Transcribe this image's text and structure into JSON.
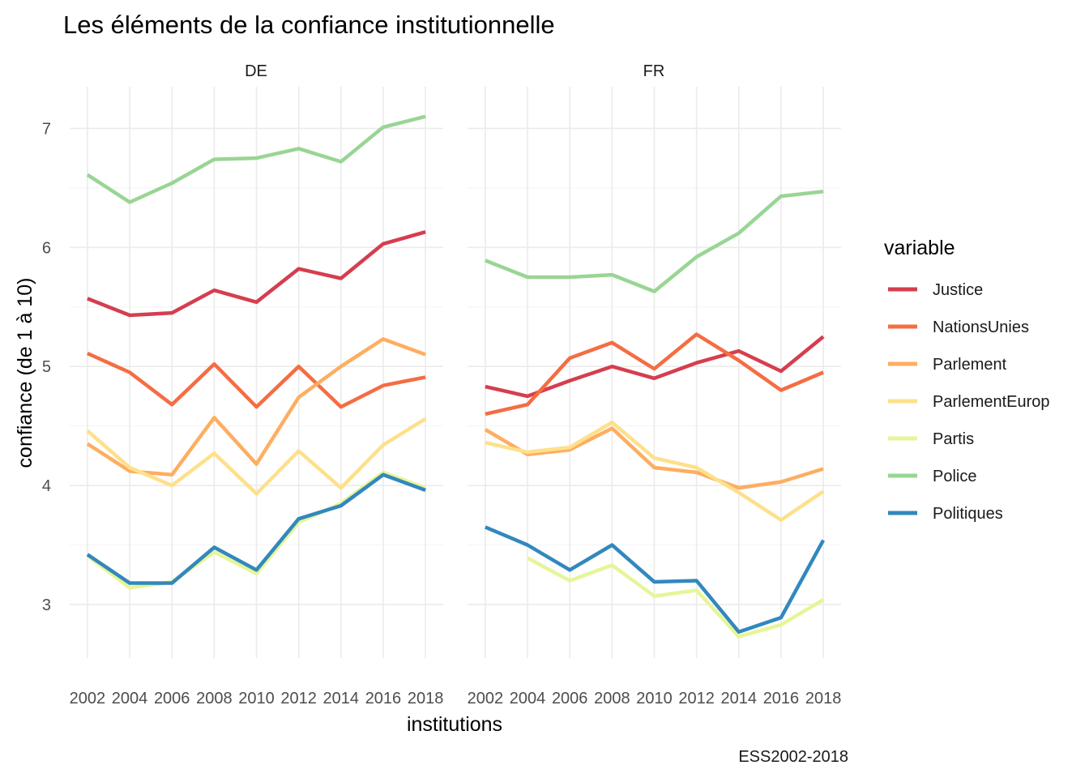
{
  "chart_data": {
    "type": "line",
    "title": "Les éléments de la confiance institutionnelle",
    "xlabel": "institutions",
    "ylabel": "confiance (de 1 à 10)",
    "caption": "ESS2002-2018",
    "legend_title": "variable",
    "legend_position": "right",
    "grid": true,
    "x": [
      2002,
      2004,
      2006,
      2008,
      2010,
      2012,
      2014,
      2016,
      2018
    ],
    "x_tick_labels": [
      "2002",
      "2004",
      "2006",
      "2008",
      "2010",
      "2012",
      "2014",
      "2016",
      "2018"
    ],
    "ylim": [
      2.55,
      7.35
    ],
    "y_ticks": [
      3,
      4,
      5,
      6,
      7
    ],
    "y_tick_labels": [
      "3",
      "4",
      "5",
      "6",
      "7"
    ],
    "series_meta": [
      {
        "name": "Justice",
        "color": "#d53e4f"
      },
      {
        "name": "NationsUnies",
        "color": "#f46d43"
      },
      {
        "name": "Parlement",
        "color": "#fdae61"
      },
      {
        "name": "ParlementEurop",
        "color": "#fee08b"
      },
      {
        "name": "Partis",
        "color": "#e6f598"
      },
      {
        "name": "Police",
        "color": "#99d594"
      },
      {
        "name": "Politiques",
        "color": "#3288bd"
      }
    ],
    "facets": [
      {
        "label": "DE",
        "series": [
          {
            "name": "Justice",
            "values": [
              5.57,
              5.43,
              5.45,
              5.64,
              5.54,
              5.82,
              5.74,
              6.03,
              6.13
            ]
          },
          {
            "name": "NationsUnies",
            "values": [
              5.11,
              4.95,
              4.68,
              5.02,
              4.66,
              5.0,
              4.66,
              4.84,
              4.91
            ]
          },
          {
            "name": "Parlement",
            "values": [
              4.35,
              4.12,
              4.09,
              4.57,
              4.18,
              4.74,
              5.0,
              5.23,
              5.1
            ]
          },
          {
            "name": "ParlementEurop",
            "values": [
              4.46,
              4.15,
              4.0,
              4.27,
              3.93,
              4.29,
              3.98,
              4.34,
              4.56
            ]
          },
          {
            "name": "Partis",
            "values": [
              3.41,
              3.14,
              3.19,
              3.44,
              3.26,
              3.69,
              3.85,
              4.11,
              3.98
            ]
          },
          {
            "name": "Police",
            "values": [
              6.61,
              6.38,
              6.54,
              6.74,
              6.75,
              6.83,
              6.72,
              7.01,
              7.1
            ]
          },
          {
            "name": "Politiques",
            "values": [
              3.42,
              3.18,
              3.18,
              3.48,
              3.29,
              3.72,
              3.83,
              4.09,
              3.96
            ]
          }
        ]
      },
      {
        "label": "FR",
        "series": [
          {
            "name": "Justice",
            "values": [
              4.83,
              4.75,
              4.88,
              5.0,
              4.9,
              5.03,
              5.13,
              4.96,
              5.25
            ]
          },
          {
            "name": "NationsUnies",
            "values": [
              4.6,
              4.68,
              5.07,
              5.2,
              4.98,
              5.27,
              5.05,
              4.8,
              4.95
            ]
          },
          {
            "name": "Parlement",
            "values": [
              4.47,
              4.26,
              4.3,
              4.48,
              4.15,
              4.11,
              3.98,
              4.03,
              4.14
            ]
          },
          {
            "name": "ParlementEurop",
            "values": [
              4.36,
              4.28,
              4.32,
              4.53,
              4.23,
              4.15,
              3.94,
              3.71,
              3.95
            ]
          },
          {
            "name": "Partis",
            "values": [
              null,
              3.39,
              3.2,
              3.33,
              3.07,
              3.12,
              2.73,
              2.83,
              3.04
            ]
          },
          {
            "name": "Police",
            "values": [
              5.89,
              5.75,
              5.75,
              5.77,
              5.63,
              5.92,
              6.12,
              6.43,
              6.47
            ]
          },
          {
            "name": "Politiques",
            "values": [
              3.65,
              3.5,
              3.29,
              3.5,
              3.19,
              3.2,
              2.77,
              2.89,
              3.54
            ]
          }
        ]
      }
    ]
  }
}
